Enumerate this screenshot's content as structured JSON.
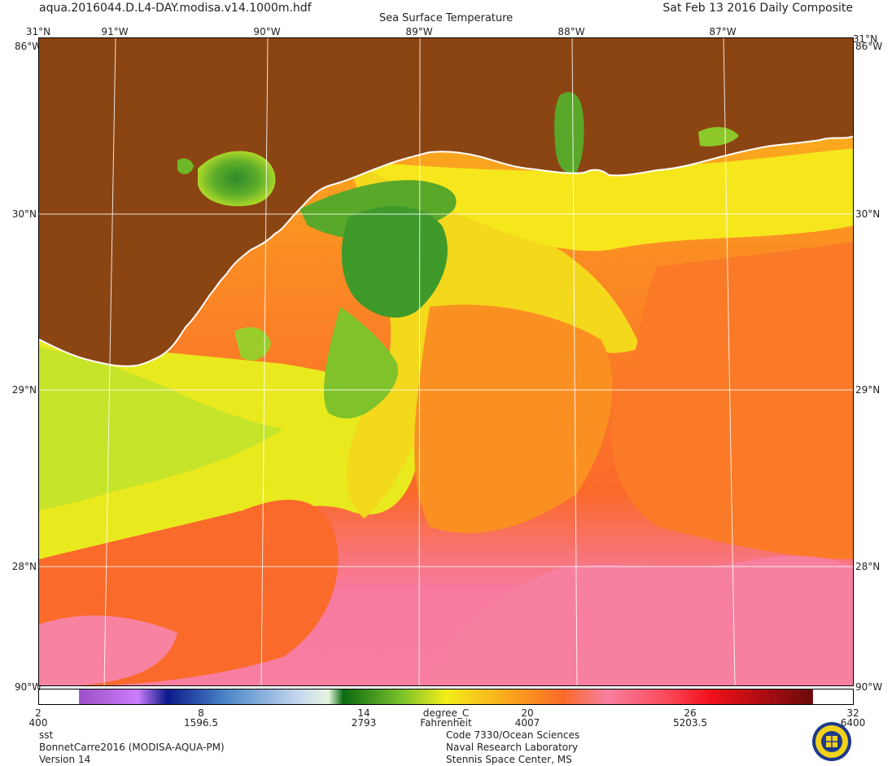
{
  "header": {
    "filename": "aqua.2016044.D.L4-DAY.modisa.v14.1000m.hdf",
    "title": "Sea Surface Temperature",
    "date": "Sat Feb 13 2016 Daily Composite"
  },
  "map": {
    "lon_labels": [
      "91°W",
      "90°W",
      "89°W",
      "88°W",
      "87°W"
    ],
    "lat_labels": [
      "30°N",
      "29°N",
      "28°N"
    ],
    "corner_top": "31°N",
    "corner_lon": "86°W",
    "corner_bottom": "90°W",
    "colors": {
      "land": "#8b4513",
      "coast": "#ffffff",
      "warm_pink": "#f77fa0",
      "orange_red": "#fa6a2a",
      "orange": "#fb9a1e",
      "yellow": "#f6ee1a",
      "lime": "#b3dc2a",
      "green": "#3f9a2a"
    }
  },
  "colorbar": {
    "celsius_ticks": [
      "2",
      "8",
      "14",
      "20",
      "26",
      "32"
    ],
    "fahrenheit_ticks": [
      "400",
      "1596.5",
      "2793",
      "4007",
      "5203.5",
      "6400"
    ],
    "unit_c": "degree_C",
    "unit_f": "Fahrenheit"
  },
  "footer": {
    "left": [
      "sst",
      "BonnetCarre2016 (MODISA-AQUA-PM)",
      "Version 14"
    ],
    "right": [
      "Code 7330/Ocean Sciences",
      "Naval Research Laboratory",
      "Stennis Space Center, MS"
    ],
    "logo": "nrl-seal-icon"
  }
}
